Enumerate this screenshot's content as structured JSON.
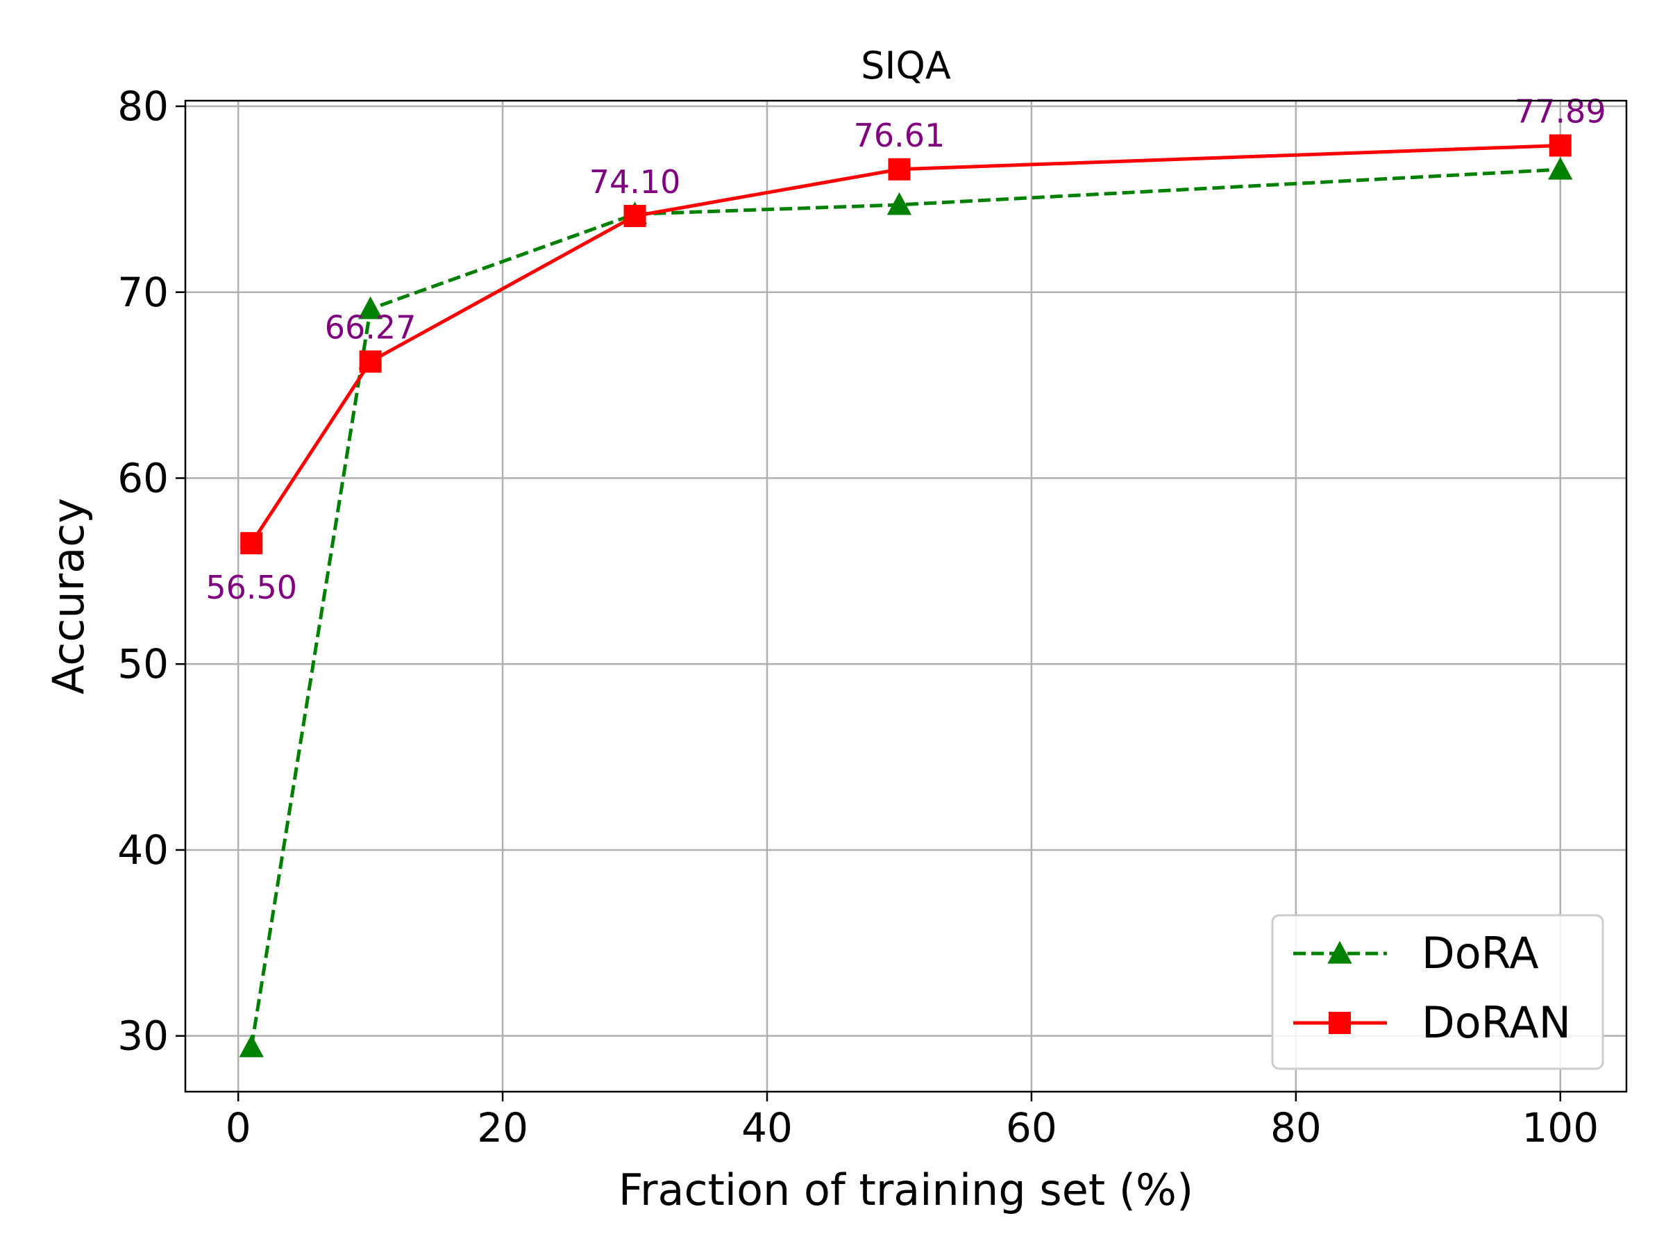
{
  "chart_data": {
    "type": "line",
    "title": "SIQA",
    "xlabel": "Fraction of training set (%)",
    "ylabel": "Accuracy",
    "xlim": [
      -4,
      105
    ],
    "ylim": [
      27,
      80.3
    ],
    "xticks": [
      0,
      20,
      40,
      60,
      80,
      100
    ],
    "yticks": [
      30,
      40,
      50,
      60,
      70,
      80
    ],
    "grid": true,
    "legend_position": "bottom-right",
    "series": [
      {
        "name": "DoRA",
        "color": "#008000",
        "line_style": "dashed",
        "marker": "triangle",
        "x": [
          1,
          10,
          30,
          50,
          100
        ],
        "y": [
          29.4,
          69.1,
          74.2,
          74.7,
          76.6
        ]
      },
      {
        "name": "DoRAN",
        "color": "#ff0000",
        "line_style": "solid",
        "marker": "square",
        "x": [
          1,
          10,
          30,
          50,
          100
        ],
        "y": [
          56.5,
          66.27,
          74.1,
          76.61,
          77.89
        ]
      }
    ],
    "annotations": [
      {
        "x": 1,
        "y": 56.5,
        "text": "56.50",
        "placement": "below"
      },
      {
        "x": 10,
        "y": 66.27,
        "text": "66.27",
        "placement": "above"
      },
      {
        "x": 30,
        "y": 74.1,
        "text": "74.10",
        "placement": "above"
      },
      {
        "x": 50,
        "y": 76.61,
        "text": "76.61",
        "placement": "above"
      },
      {
        "x": 100,
        "y": 77.89,
        "text": "77.89",
        "placement": "above"
      }
    ],
    "annotation_color": "#800080"
  }
}
